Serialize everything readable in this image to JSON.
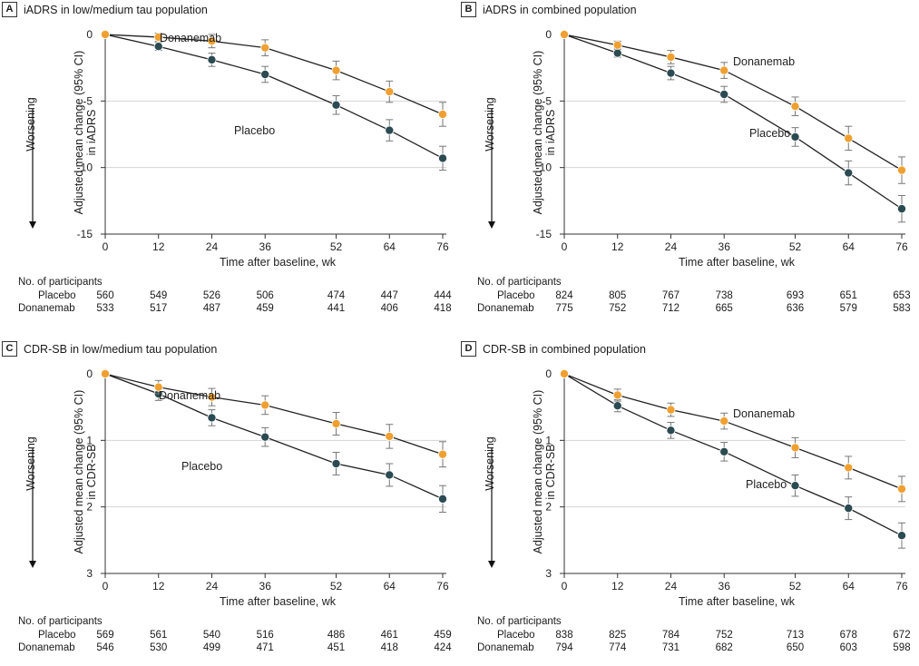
{
  "colors": {
    "placebo": "#2b4a52",
    "donanemab": "#f0a030",
    "grid": "#d4d4d4",
    "axis": "#333333",
    "errorbar": "#777777"
  },
  "x_axis_label": "Time after baseline, wk",
  "x_ticks": [
    0,
    12,
    24,
    36,
    52,
    64,
    76
  ],
  "worsening_label": "Worsening",
  "participants_header": "No. of participants",
  "panels": [
    {
      "letter": "A",
      "title": "iADRS in low/medium tau population",
      "ylabel_line1": "Adjusted mean change (95% CI)",
      "ylabel_line2": "in iADRS",
      "donanemab_label": "Donanemab",
      "placebo_label": "Placebo",
      "participants": {
        "placebo_label": "Placebo",
        "donanemab_label": "Donanemab",
        "placebo": [
          "560",
          "549",
          "526",
          "506",
          "474",
          "447",
          "444"
        ],
        "donanemab": [
          "533",
          "517",
          "487",
          "459",
          "441",
          "406",
          "418"
        ]
      }
    },
    {
      "letter": "B",
      "title": "iADRS in combined population",
      "ylabel_line1": "Adjusted mean change (95% CI)",
      "ylabel_line2": "in iADRS",
      "donanemab_label": "Donanemab",
      "placebo_label": "Placebo",
      "participants": {
        "placebo_label": "Placebo",
        "donanemab_label": "Donanemab",
        "placebo": [
          "824",
          "805",
          "767",
          "738",
          "693",
          "651",
          "653"
        ],
        "donanemab": [
          "775",
          "752",
          "712",
          "665",
          "636",
          "579",
          "583"
        ]
      }
    },
    {
      "letter": "C",
      "title": "CDR-SB in low/medium tau population",
      "ylabel_line1": "Adjusted mean change (95% CI)",
      "ylabel_line2": "in CDR-SB",
      "donanemab_label": "Donanemab",
      "placebo_label": "Placebo",
      "participants": {
        "placebo_label": "Placebo",
        "donanemab_label": "Donanemab",
        "placebo": [
          "569",
          "561",
          "540",
          "516",
          "486",
          "461",
          "459"
        ],
        "donanemab": [
          "546",
          "530",
          "499",
          "471",
          "451",
          "418",
          "424"
        ]
      }
    },
    {
      "letter": "D",
      "title": "CDR-SB in combined population",
      "ylabel_line1": "Adjusted mean change (95% CI)",
      "ylabel_line2": "in CDR-SB",
      "donanemab_label": "Donanemab",
      "placebo_label": "Placebo",
      "participants": {
        "placebo_label": "Placebo",
        "donanemab_label": "Donanemab",
        "placebo": [
          "838",
          "825",
          "784",
          "752",
          "713",
          "678",
          "672"
        ],
        "donanemab": [
          "794",
          "774",
          "731",
          "682",
          "650",
          "603",
          "598"
        ]
      }
    }
  ],
  "chart_data": [
    {
      "type": "line",
      "title": "iADRS in low/medium tau population",
      "xlabel": "Time after baseline, wk",
      "ylabel": "Adjusted mean change (95% CI) in iADRS",
      "x": [
        0,
        12,
        24,
        36,
        52,
        64,
        76
      ],
      "ylim": [
        -15,
        0
      ],
      "y_ticks": [
        0,
        -5,
        -10,
        -15
      ],
      "grid": true,
      "series": [
        {
          "name": "Donanemab",
          "values": [
            0,
            -0.2,
            -0.5,
            -1.0,
            -2.7,
            -4.3,
            -6.0
          ],
          "ci_low": [
            0,
            -0.5,
            -1.0,
            -1.6,
            -3.4,
            -5.1,
            -6.9
          ],
          "ci_high": [
            0,
            0.1,
            0.0,
            -0.4,
            -2.0,
            -3.5,
            -5.1
          ]
        },
        {
          "name": "Placebo",
          "values": [
            0,
            -0.9,
            -1.9,
            -3.0,
            -5.3,
            -7.2,
            -9.3
          ],
          "ci_low": [
            0,
            -1.2,
            -2.4,
            -3.6,
            -6.0,
            -8.0,
            -10.2
          ],
          "ci_high": [
            0,
            -0.6,
            -1.4,
            -2.4,
            -4.6,
            -6.4,
            -8.4
          ]
        }
      ]
    },
    {
      "type": "line",
      "title": "iADRS in combined population",
      "xlabel": "Time after baseline, wk",
      "ylabel": "Adjusted mean change (95% CI) in iADRS",
      "x": [
        0,
        12,
        24,
        36,
        52,
        64,
        76
      ],
      "ylim": [
        -15,
        0
      ],
      "y_ticks": [
        0,
        -5,
        -10,
        -15
      ],
      "grid": true,
      "series": [
        {
          "name": "Donanemab",
          "values": [
            0,
            -0.8,
            -1.7,
            -2.7,
            -5.4,
            -7.8,
            -10.2
          ],
          "ci_low": [
            0,
            -1.1,
            -2.2,
            -3.3,
            -6.1,
            -8.7,
            -11.2
          ],
          "ci_high": [
            0,
            -0.5,
            -1.2,
            -2.1,
            -4.7,
            -6.9,
            -9.2
          ]
        },
        {
          "name": "Placebo",
          "values": [
            0,
            -1.4,
            -2.9,
            -4.5,
            -7.7,
            -10.4,
            -13.1
          ],
          "ci_low": [
            0,
            -1.7,
            -3.4,
            -5.1,
            -8.4,
            -11.3,
            -14.1
          ],
          "ci_high": [
            0,
            -1.1,
            -2.4,
            -3.9,
            -7.0,
            -9.5,
            -12.1
          ]
        }
      ]
    },
    {
      "type": "line",
      "title": "CDR-SB in low/medium tau population",
      "xlabel": "Time after baseline, wk",
      "ylabel": "Adjusted mean change (95% CI) in CDR-SB",
      "x": [
        0,
        12,
        24,
        36,
        52,
        64,
        76
      ],
      "ylim": [
        0,
        3
      ],
      "y_ticks": [
        0,
        1,
        2,
        3
      ],
      "y_inverted": true,
      "grid": true,
      "series": [
        {
          "name": "Donanemab",
          "values": [
            0,
            0.2,
            0.35,
            0.47,
            0.75,
            0.94,
            1.21
          ],
          "ci_low": [
            0,
            0.1,
            0.22,
            0.33,
            0.58,
            0.76,
            1.02
          ],
          "ci_high": [
            0,
            0.3,
            0.48,
            0.61,
            0.92,
            1.12,
            1.4
          ]
        },
        {
          "name": "Placebo",
          "values": [
            0,
            0.3,
            0.66,
            0.95,
            1.35,
            1.52,
            1.88
          ],
          "ci_low": [
            0,
            0.2,
            0.54,
            0.81,
            1.18,
            1.35,
            1.68
          ],
          "ci_high": [
            0,
            0.4,
            0.78,
            1.09,
            1.52,
            1.69,
            2.08
          ]
        }
      ]
    },
    {
      "type": "line",
      "title": "CDR-SB in combined population",
      "xlabel": "Time after baseline, wk",
      "ylabel": "Adjusted mean change (95% CI) in CDR-SB",
      "x": [
        0,
        12,
        24,
        36,
        52,
        64,
        76
      ],
      "ylim": [
        0,
        3
      ],
      "y_ticks": [
        0,
        1,
        2,
        3
      ],
      "y_inverted": true,
      "grid": true,
      "series": [
        {
          "name": "Donanemab",
          "values": [
            0,
            0.32,
            0.54,
            0.71,
            1.11,
            1.41,
            1.73
          ],
          "ci_low": [
            0,
            0.23,
            0.44,
            0.59,
            0.96,
            1.24,
            1.54
          ],
          "ci_high": [
            0,
            0.41,
            0.64,
            0.83,
            1.26,
            1.58,
            1.92
          ]
        },
        {
          "name": "Placebo",
          "values": [
            0,
            0.48,
            0.85,
            1.17,
            1.68,
            2.02,
            2.43
          ],
          "ci_low": [
            0,
            0.39,
            0.73,
            1.03,
            1.52,
            1.85,
            2.24
          ],
          "ci_high": [
            0,
            0.57,
            0.97,
            1.31,
            1.84,
            2.19,
            2.62
          ]
        }
      ]
    }
  ]
}
